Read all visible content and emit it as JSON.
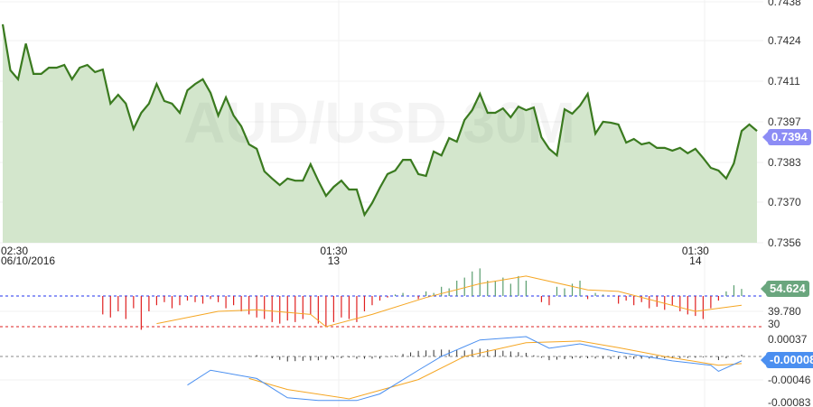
{
  "chart_data": [
    {
      "type": "area",
      "title": "AUD/USD 30M",
      "ylim": [
        0.7356,
        0.7438
      ],
      "yticks": [
        "0.7438",
        "0.7424",
        "0.7411",
        "0.7397",
        "0.7383",
        "0.7370",
        "0.7356"
      ],
      "xticks": [
        {
          "time": "02:30",
          "date": "06/10/2016",
          "index": 0
        },
        {
          "time": "01:30",
          "date": "13",
          "index": 43
        },
        {
          "time": "01:30",
          "date": "14",
          "index": 90
        }
      ],
      "last_value_label": "0.7394",
      "line_color": "#3a7a1f",
      "fill_color": "#d3e6cc",
      "grid": true,
      "values": [
        0.74295,
        0.7414,
        0.7411,
        0.7423,
        0.74128,
        0.74128,
        0.74149,
        0.74149,
        0.74158,
        0.7411,
        0.74149,
        0.74158,
        0.74134,
        0.74143,
        0.74028,
        0.74058,
        0.74028,
        0.73943,
        0.73997,
        0.74028,
        0.74094,
        0.74037,
        0.74028,
        0.73997,
        0.74073,
        0.74094,
        0.7411,
        0.74064,
        0.73988,
        0.74049,
        0.73988,
        0.73952,
        0.73891,
        0.73876,
        0.738,
        0.73776,
        0.73754,
        0.73776,
        0.73769,
        0.73769,
        0.73824,
        0.73769,
        0.73718,
        0.73748,
        0.73769,
        0.73739,
        0.73739,
        0.73654,
        0.73694,
        0.73745,
        0.73791,
        0.73803,
        0.73839,
        0.73839,
        0.73791,
        0.73785,
        0.73867,
        0.73854,
        0.73912,
        0.739,
        0.73973,
        0.74006,
        0.74061,
        0.73997,
        0.73997,
        0.74012,
        0.73982,
        0.74018,
        0.74006,
        0.74015,
        0.73915,
        0.73876,
        0.73854,
        0.74009,
        0.73994,
        0.74021,
        0.74061,
        0.73927,
        0.73967,
        0.73964,
        0.73958,
        0.73897,
        0.73909,
        0.73891,
        0.73897,
        0.73879,
        0.73879,
        0.7387,
        0.73879,
        0.73861,
        0.73876,
        0.73845,
        0.73812,
        0.73803,
        0.73776,
        0.73827,
        0.73936,
        0.73958,
        0.73936
      ]
    },
    {
      "type": "bar",
      "ylim": [
        20,
        72
      ],
      "levels": [
        50,
        30
      ],
      "yticks": [
        "39.780",
        "30"
      ],
      "last_value_label": "54.624",
      "up_color": "#5a9e6f",
      "down_color": "#e02020",
      "start_index": 13,
      "values": [
        38,
        36,
        40,
        35,
        42,
        28,
        40,
        44,
        46,
        42,
        44,
        47,
        46,
        45,
        48,
        46,
        42,
        44,
        40,
        38,
        36,
        35,
        33,
        32,
        34,
        33,
        35,
        38,
        32,
        30,
        33,
        36,
        35,
        33,
        40,
        44,
        47,
        49,
        51,
        52,
        50,
        48,
        53,
        52,
        56,
        55,
        60,
        62,
        66,
        68,
        60,
        60,
        62,
        58,
        63,
        60,
        50,
        46,
        44,
        56,
        55,
        58,
        60,
        48,
        52,
        51,
        50,
        45,
        47,
        44,
        46,
        42,
        43,
        41,
        44,
        40,
        38,
        37,
        35,
        42,
        47,
        53,
        57,
        54.624
      ],
      "signal": [
        [
          20,
          32
        ],
        [
          28,
          40
        ],
        [
          33,
          41
        ],
        [
          40,
          38
        ],
        [
          42,
          30
        ],
        [
          48,
          38
        ],
        [
          55,
          49
        ],
        [
          62,
          58
        ],
        [
          68,
          63
        ],
        [
          76,
          54
        ],
        [
          80,
          53
        ],
        [
          90,
          40
        ],
        [
          96,
          44
        ]
      ],
      "signal_color": "#f5a623"
    },
    {
      "type": "line",
      "ylim": [
        -0.00093,
        0.00045
      ],
      "yticks": [
        "0.00037",
        "-0.00046",
        "-0.00083"
      ],
      "last_value_label": "-0.00008",
      "macd": [
        [
          24,
          -0.00052
        ],
        [
          27,
          -0.00025
        ],
        [
          33,
          -0.0004
        ],
        [
          37,
          -0.00075
        ],
        [
          41,
          -0.0008
        ],
        [
          46,
          -0.0008
        ],
        [
          49,
          -0.00068
        ],
        [
          54,
          -0.00025
        ],
        [
          57,
          0
        ],
        [
          62,
          0.0003
        ],
        [
          68,
          0.00036
        ],
        [
          71,
          0.00015
        ],
        [
          75,
          0.00023
        ],
        [
          80,
          8e-05
        ],
        [
          87,
          -8e-05
        ],
        [
          92,
          -0.00016
        ],
        [
          93,
          -0.00027
        ],
        [
          96,
          -8e-05
        ]
      ],
      "signal": [
        [
          32,
          -0.0004
        ],
        [
          37,
          -0.0006
        ],
        [
          45,
          -0.00077
        ],
        [
          54,
          -0.00042
        ],
        [
          60,
          0
        ],
        [
          68,
          0.00025
        ],
        [
          75,
          0.00028
        ],
        [
          80,
          0.00016
        ],
        [
          86,
          0
        ],
        [
          93,
          -0.00016
        ],
        [
          96,
          -0.00013
        ]
      ],
      "macd_color": "#4a8ff0",
      "signal_color": "#f5a623"
    }
  ]
}
